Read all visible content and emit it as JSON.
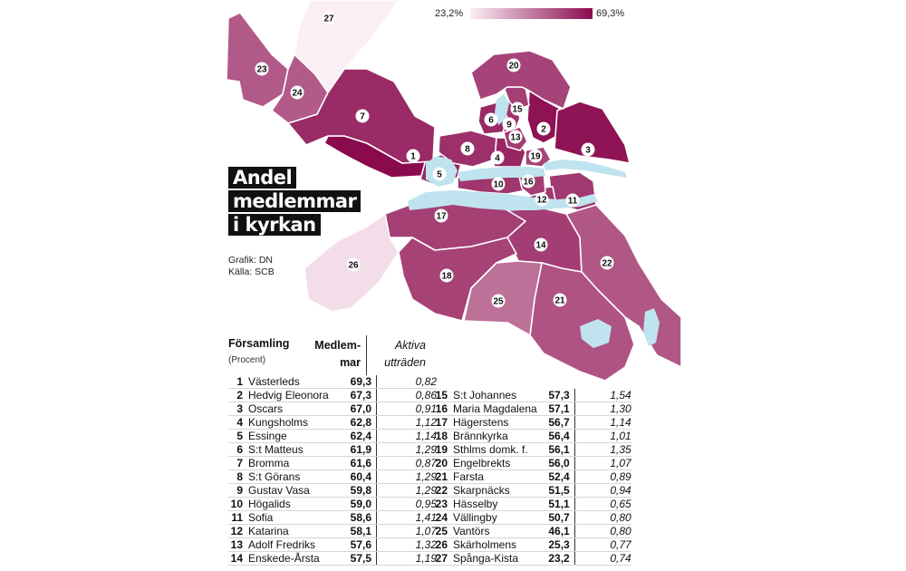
{
  "title_lines": [
    "Andel",
    "medlemmar",
    "i kyrkan"
  ],
  "credits": {
    "graphic": "Grafik: DN",
    "source": "Källa: SCB"
  },
  "legend": {
    "min_label": "23,2%",
    "max_label": "69,3%",
    "min_value": 23.2,
    "max_value": 69.3,
    "color_min": "#fbeef4",
    "color_max": "#8a0a4e"
  },
  "colors": {
    "water": "#bfe3ef",
    "border": "#ffffff",
    "title_bg": "#111111"
  },
  "table": {
    "header_name": "Församling",
    "header_sub": "(Procent)",
    "header_members_line1": "Medlem-",
    "header_members_line2": "mar",
    "header_active_line1": "Aktiva",
    "header_active_line2": "utträden",
    "rows": [
      {
        "nr": "1",
        "name": "Västerleds",
        "members": "69,3",
        "active": "0,82",
        "value": 69.3
      },
      {
        "nr": "2",
        "name": "Hedvig Eleonora",
        "members": "67,3",
        "active": "0,86",
        "value": 67.3
      },
      {
        "nr": "3",
        "name": "Oscars",
        "members": "67,0",
        "active": "0,91",
        "value": 67.0
      },
      {
        "nr": "4",
        "name": "Kungsholms",
        "members": "62,8",
        "active": "1,12",
        "value": 62.8
      },
      {
        "nr": "5",
        "name": "Essinge",
        "members": "62,4",
        "active": "1,14",
        "value": 62.4
      },
      {
        "nr": "6",
        "name": "S:t Matteus",
        "members": "61,9",
        "active": "1,29",
        "value": 61.9
      },
      {
        "nr": "7",
        "name": "Bromma",
        "members": "61,6",
        "active": "0,87",
        "value": 61.6
      },
      {
        "nr": "8",
        "name": "S:t Görans",
        "members": "60,4",
        "active": "1,29",
        "value": 60.4
      },
      {
        "nr": "9",
        "name": "Gustav Vasa",
        "members": "59,8",
        "active": "1,29",
        "value": 59.8
      },
      {
        "nr": "10",
        "name": "Högalids",
        "members": "59,0",
        "active": "0,95",
        "value": 59.0
      },
      {
        "nr": "11",
        "name": "Sofia",
        "members": "58,6",
        "active": "1,41",
        "value": 58.6
      },
      {
        "nr": "12",
        "name": "Katarina",
        "members": "58,1",
        "active": "1,07",
        "value": 58.1
      },
      {
        "nr": "13",
        "name": "Adolf Fredriks",
        "members": "57,6",
        "active": "1,32",
        "value": 57.6
      },
      {
        "nr": "14",
        "name": "Enskede-Årsta",
        "members": "57,5",
        "active": "1,19",
        "value": 57.5
      },
      {
        "nr": "15",
        "name": "S:t Johannes",
        "members": "57,3",
        "active": "1,54",
        "value": 57.3
      },
      {
        "nr": "16",
        "name": "Maria Magdalena",
        "members": "57,1",
        "active": "1,30",
        "value": 57.1
      },
      {
        "nr": "17",
        "name": "Hägerstens",
        "members": "56,7",
        "active": "1,14",
        "value": 56.7
      },
      {
        "nr": "18",
        "name": "Brännkyrka",
        "members": "56,4",
        "active": "1,01",
        "value": 56.4
      },
      {
        "nr": "19",
        "name": "Sthlms domk. f.",
        "members": "56,1",
        "active": "1,35",
        "value": 56.1
      },
      {
        "nr": "20",
        "name": "Engelbrekts",
        "members": "56,0",
        "active": "1,07",
        "value": 56.0
      },
      {
        "nr": "21",
        "name": "Farsta",
        "members": "52,4",
        "active": "0,89",
        "value": 52.4
      },
      {
        "nr": "22",
        "name": "Skarpnäcks",
        "members": "51,5",
        "active": "0,94",
        "value": 51.5
      },
      {
        "nr": "23",
        "name": "Hässelby",
        "members": "51,1",
        "active": "0,65",
        "value": 51.1
      },
      {
        "nr": "24",
        "name": "Vällingby",
        "members": "50,7",
        "active": "0,80",
        "value": 50.7
      },
      {
        "nr": "25",
        "name": "Vantörs",
        "members": "46,1",
        "active": "0,80",
        "value": 46.1
      },
      {
        "nr": "26",
        "name": "Skärholmens",
        "members": "25,3",
        "active": "0,77",
        "value": 25.3
      },
      {
        "nr": "27",
        "name": "Spånga-Kista",
        "members": "23,2",
        "active": "0,74",
        "value": 23.2
      }
    ]
  }
}
